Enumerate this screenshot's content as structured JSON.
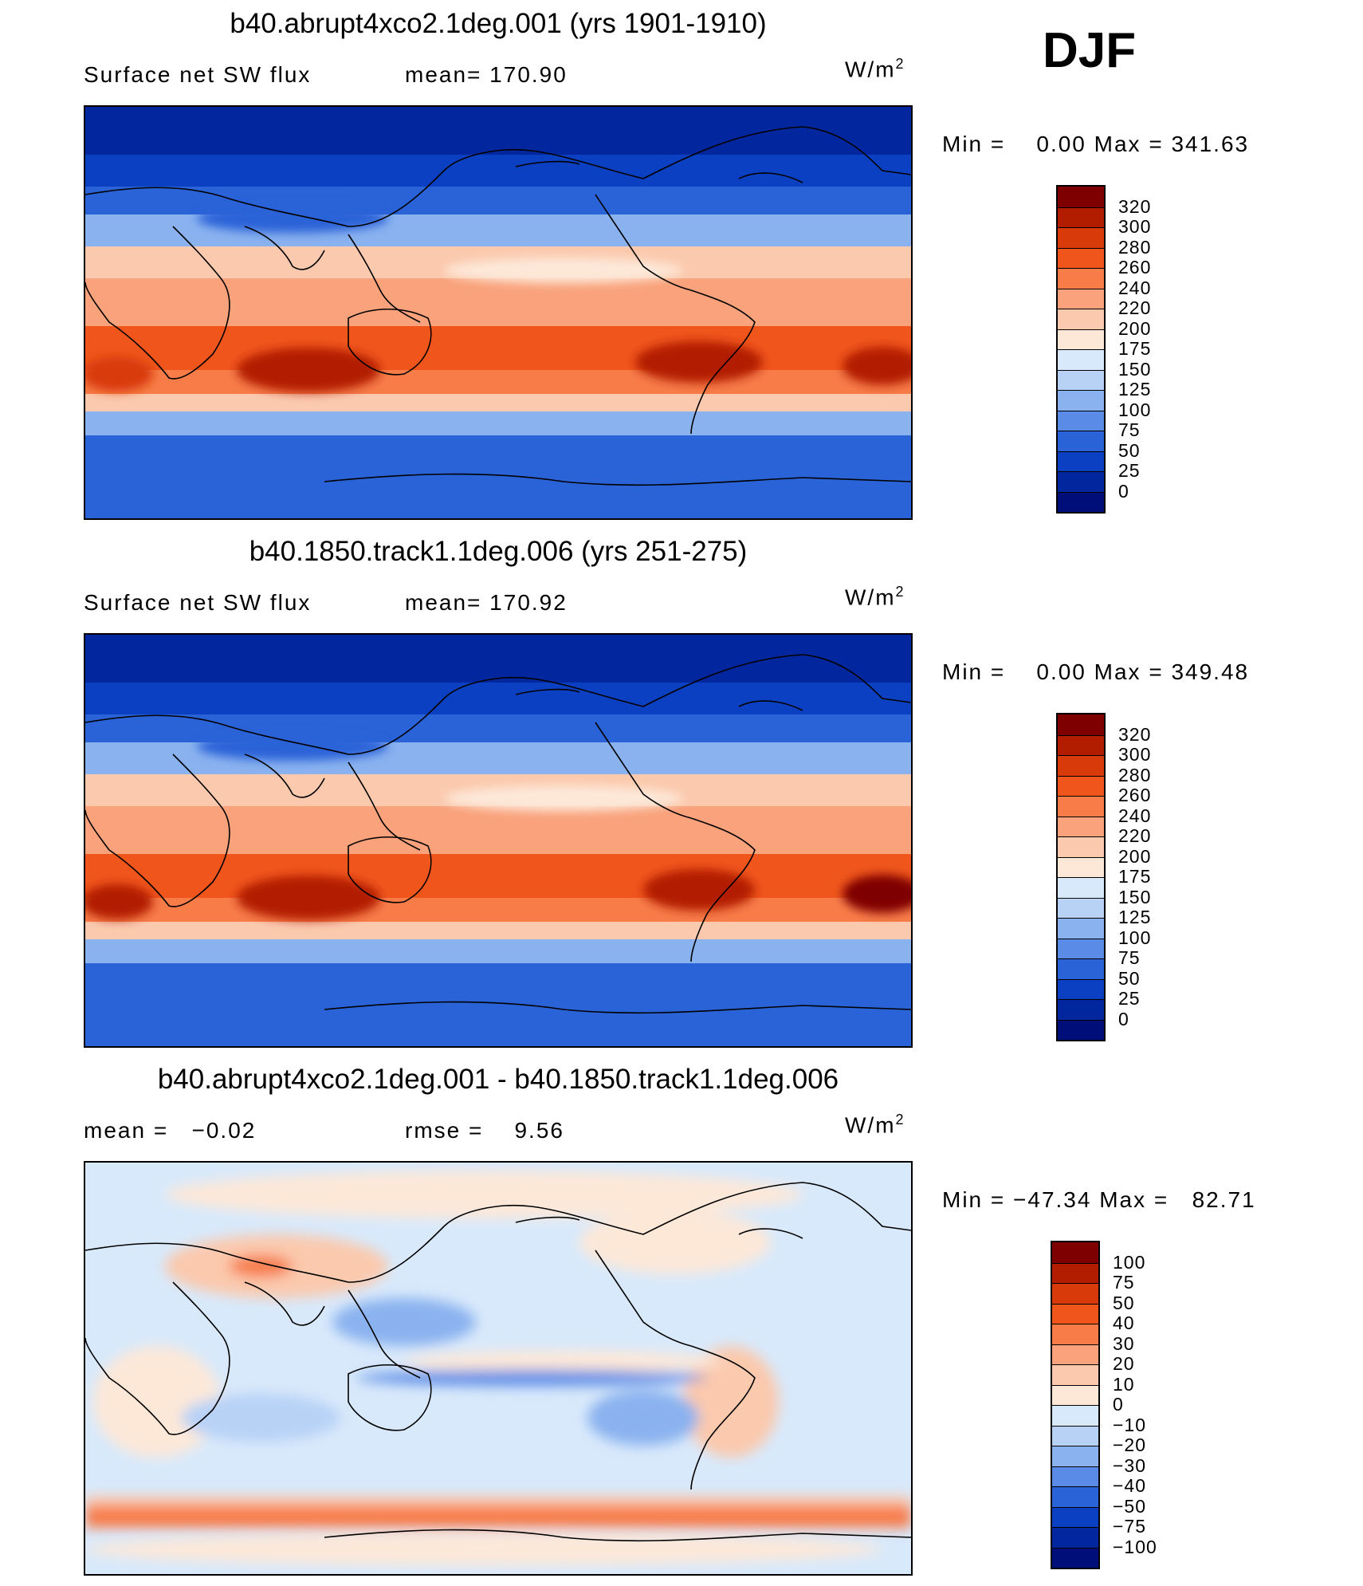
{
  "season": "DJF",
  "panels": [
    {
      "title": "b40.abrupt4xco2.1deg.001 (yrs 1901-1910)",
      "left_text": "Surface net SW flux",
      "mid_text": "mean= 170.90",
      "units_base": "W/m",
      "units_exp": "2",
      "min_label": "Min =",
      "min_value": "0.00",
      "max_label": "Max =",
      "max_value": "341.63",
      "colorbar": {
        "colors": [
          "#7f0000",
          "#b21d00",
          "#d93a0a",
          "#f0561c",
          "#f77c48",
          "#f9a27b",
          "#fbc9ad",
          "#fde8d8",
          "#d8e9fb",
          "#b8d2f6",
          "#8ab2ef",
          "#5a8be6",
          "#2a62d8",
          "#0c40c2",
          "#02269e",
          "#000e7a"
        ],
        "labels": [
          "320",
          "300",
          "280",
          "260",
          "240",
          "220",
          "200",
          "175",
          "150",
          "125",
          "100",
          "75",
          "50",
          "25",
          "0"
        ]
      }
    },
    {
      "title": "b40.1850.track1.1deg.006 (yrs 251-275)",
      "left_text": "Surface net SW flux",
      "mid_text": "mean= 170.92",
      "units_base": "W/m",
      "units_exp": "2",
      "min_label": "Min =",
      "min_value": "0.00",
      "max_label": "Max =",
      "max_value": "349.48",
      "colorbar": {
        "colors": [
          "#7f0000",
          "#b21d00",
          "#d93a0a",
          "#f0561c",
          "#f77c48",
          "#f9a27b",
          "#fbc9ad",
          "#fde8d8",
          "#d8e9fb",
          "#b8d2f6",
          "#8ab2ef",
          "#5a8be6",
          "#2a62d8",
          "#0c40c2",
          "#02269e",
          "#000e7a"
        ],
        "labels": [
          "320",
          "300",
          "280",
          "260",
          "240",
          "220",
          "200",
          "175",
          "150",
          "125",
          "100",
          "75",
          "50",
          "25",
          "0"
        ]
      }
    },
    {
      "title": "b40.abrupt4xco2.1deg.001 - b40.1850.track1.1deg.006",
      "left_text": "mean =   −0.02",
      "mid_text": "rmse =    9.56",
      "units_base": "W/m",
      "units_exp": "2",
      "min_label": "Min =",
      "min_value": "−47.34",
      "max_label": "Max =",
      "max_value": "82.71",
      "colorbar": {
        "colors": [
          "#7f0000",
          "#b21d00",
          "#d93a0a",
          "#f0561c",
          "#f77c48",
          "#f9a27b",
          "#fbc9ad",
          "#fde8d8",
          "#d8e9fb",
          "#b8d2f6",
          "#8ab2ef",
          "#5a8be6",
          "#2a62d8",
          "#0c40c2",
          "#02269e",
          "#000e7a"
        ],
        "labels": [
          "100",
          "75",
          "50",
          "40",
          "30",
          "20",
          "10",
          "0",
          "−10",
          "−20",
          "−30",
          "−40",
          "−50",
          "−75",
          "−100"
        ]
      }
    }
  ]
}
